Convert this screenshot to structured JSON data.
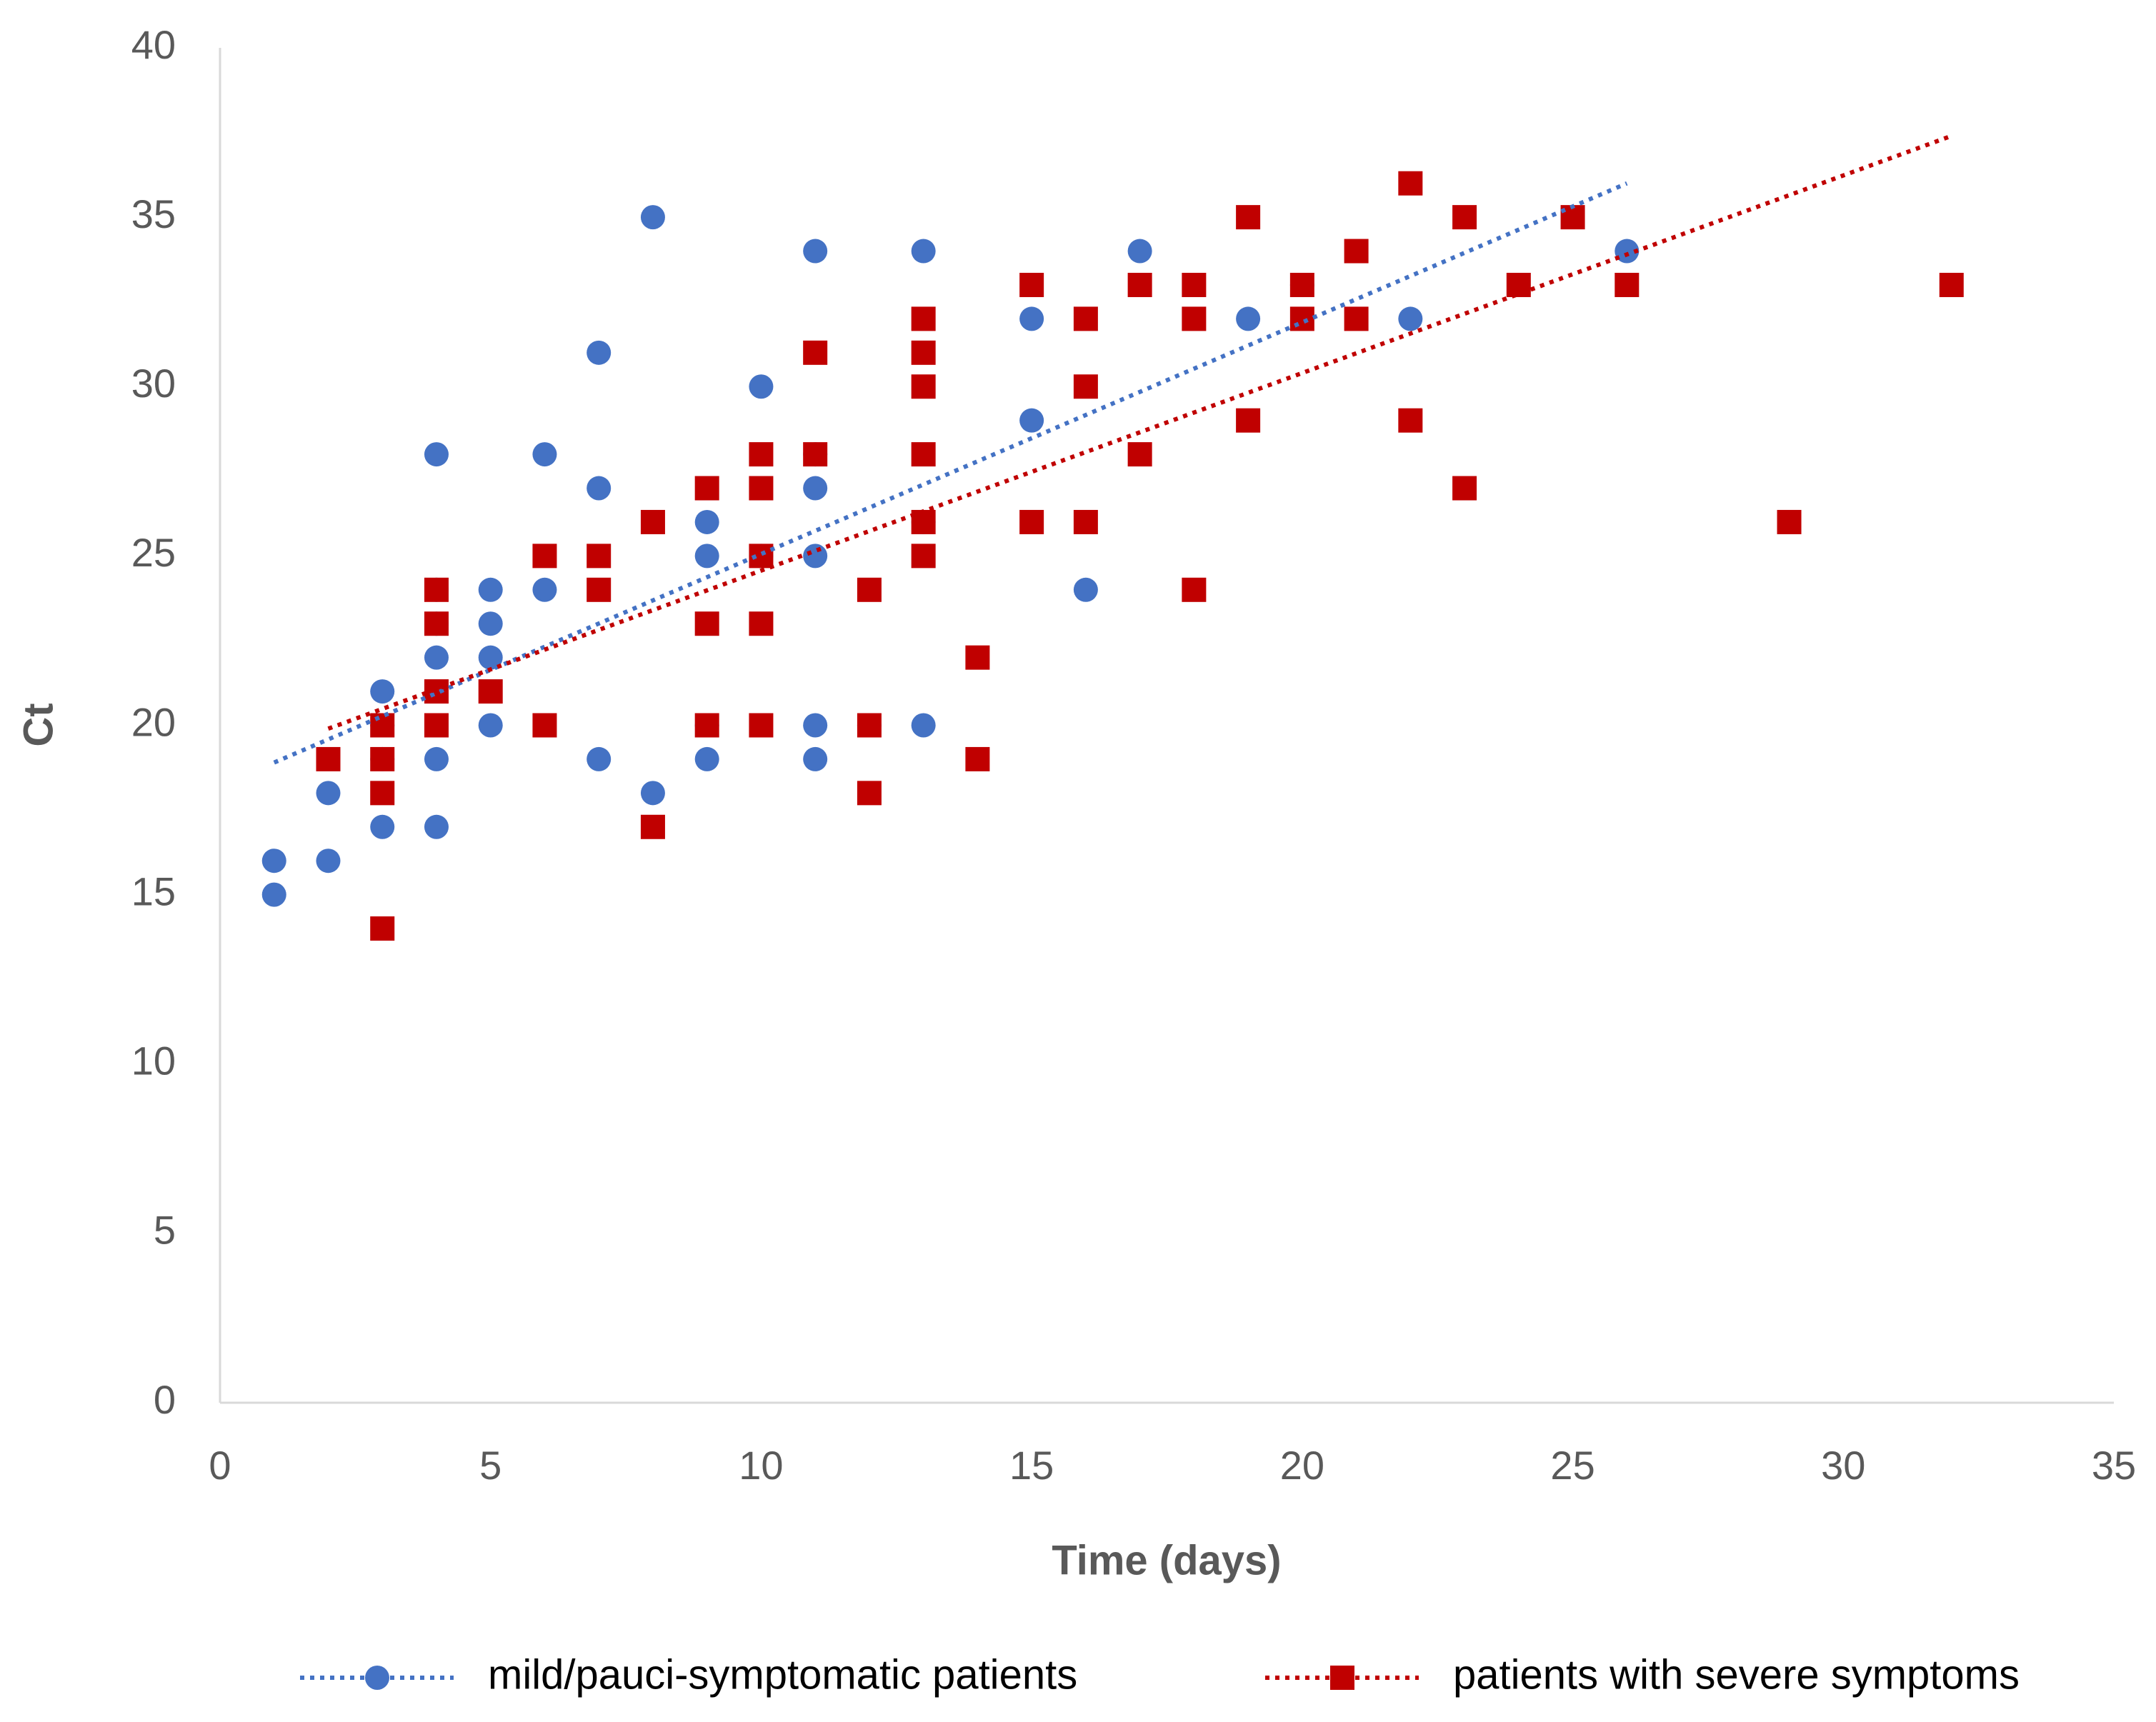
{
  "chart_data": {
    "type": "scatter",
    "xlabel": "Time (days)",
    "ylabel": "Ct",
    "xlim": [
      0,
      35
    ],
    "xticks": [
      0,
      5,
      10,
      15,
      20,
      25,
      30,
      35
    ],
    "ylim": [
      0,
      40
    ],
    "yticks": [
      0,
      5,
      10,
      15,
      20,
      25,
      30,
      35,
      40
    ],
    "grid": false,
    "legend": "bottom",
    "series": [
      {
        "name": "mild/pauci-symptomatic patients",
        "color": "#4472c4",
        "marker": "circle",
        "x": [
          1,
          1,
          2,
          2,
          3,
          3,
          3,
          3,
          4,
          4,
          4,
          4,
          4,
          4,
          5,
          5,
          5,
          5,
          6,
          6,
          7,
          7,
          7,
          8,
          8,
          9,
          9,
          9,
          9,
          10,
          10,
          11,
          11,
          11,
          11,
          11,
          11,
          12,
          13,
          13,
          13,
          15,
          15,
          16,
          17,
          19,
          20,
          22,
          26
        ],
        "values": [
          16,
          15,
          18,
          16,
          21,
          20,
          19,
          17,
          28,
          24,
          23,
          22,
          19,
          17,
          24,
          23,
          22,
          20,
          28,
          24,
          31,
          27,
          19,
          35,
          18,
          26,
          25,
          20,
          19,
          30,
          25,
          34,
          28,
          27,
          25,
          20,
          19,
          20,
          34,
          26,
          20,
          32,
          29,
          24,
          34,
          32,
          33,
          32,
          34
        ],
        "trendline": {
          "x": [
            1,
            26
          ],
          "values": [
            18.9,
            36
          ]
        }
      },
      {
        "name": "patients with severe symptoms",
        "color": "#c00000",
        "marker": "square",
        "x": [
          2,
          3,
          3,
          3,
          3,
          4,
          4,
          4,
          4,
          5,
          6,
          6,
          7,
          7,
          8,
          8,
          9,
          9,
          9,
          10,
          10,
          10,
          10,
          10,
          11,
          11,
          12,
          12,
          12,
          13,
          13,
          13,
          13,
          13,
          13,
          14,
          14,
          15,
          15,
          16,
          16,
          16,
          17,
          17,
          18,
          18,
          18,
          19,
          19,
          20,
          20,
          21,
          21,
          22,
          22,
          23,
          23,
          24,
          25,
          26,
          29,
          32
        ],
        "values": [
          19,
          20,
          19,
          18,
          14,
          24,
          23,
          21,
          20,
          21,
          25,
          20,
          25,
          24,
          26,
          17,
          27,
          23,
          20,
          28,
          27,
          25,
          23,
          20,
          31,
          28,
          24,
          20,
          18,
          32,
          31,
          30,
          28,
          26,
          25,
          22,
          19,
          33,
          26,
          32,
          30,
          26,
          33,
          28,
          33,
          32,
          24,
          35,
          29,
          33,
          32,
          34,
          32,
          36,
          29,
          35,
          27,
          33,
          35,
          33,
          26,
          33
        ],
        "trendline": {
          "x": [
            2,
            32
          ],
          "values": [
            19.9,
            37.4
          ]
        }
      }
    ]
  }
}
